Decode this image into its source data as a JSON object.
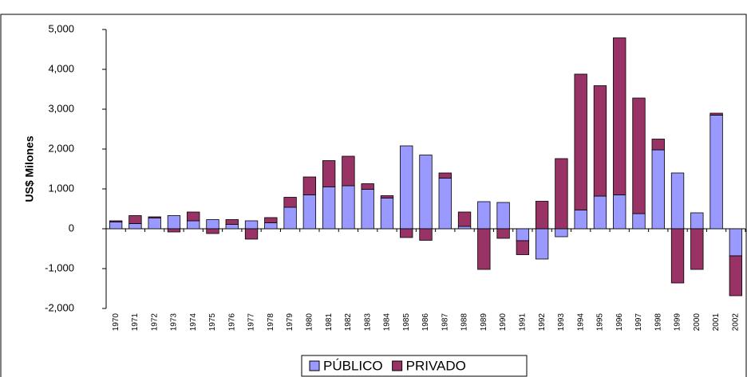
{
  "chart_data": {
    "type": "bar",
    "stacked": true,
    "y_label": "US$ Milones",
    "categories": [
      "1970",
      "1971",
      "1972",
      "1973",
      "1974",
      "1975",
      "1976",
      "1977",
      "1978",
      "1979",
      "1980",
      "1981",
      "1982",
      "1983",
      "1984",
      "1985",
      "1986",
      "1987",
      "1988",
      "1989",
      "1990",
      "1991",
      "1992",
      "1993",
      "1994",
      "1995",
      "1996",
      "1997",
      "1998",
      "1999",
      "2000",
      "2001",
      "2002"
    ],
    "series": [
      {
        "name": "PÚBLICO",
        "color": "#9999ff",
        "values": [
          170,
          130,
          270,
          330,
          200,
          230,
          110,
          200,
          150,
          540,
          850,
          1050,
          1080,
          990,
          770,
          2080,
          1850,
          1270,
          60,
          680,
          660,
          -300,
          -760,
          -200,
          470,
          820,
          850,
          380,
          1980,
          1400,
          400,
          2850,
          -680
        ]
      },
      {
        "name": "PRIVADO",
        "color": "#993366",
        "values": [
          30,
          200,
          30,
          -80,
          220,
          -120,
          120,
          -260,
          130,
          250,
          450,
          660,
          740,
          140,
          60,
          -220,
          -290,
          130,
          360,
          -1020,
          -240,
          -350,
          690,
          1760,
          3410,
          2770,
          3940,
          2900,
          270,
          -1360,
          -1020,
          50,
          -1000
        ]
      }
    ],
    "ylim": [
      -2000,
      5000
    ],
    "yticks": [
      {
        "value": -2000,
        "label": "-2,000"
      },
      {
        "value": -1000,
        "label": "-1,000"
      },
      0,
      {
        "value": 1000,
        "label": "1,000"
      },
      {
        "value": 2000,
        "label": "2,000"
      },
      {
        "value": 3000,
        "label": "3,000"
      },
      {
        "value": 4000,
        "label": "4,000"
      },
      {
        "value": 5000,
        "label": "5,000"
      }
    ],
    "grid": false
  }
}
